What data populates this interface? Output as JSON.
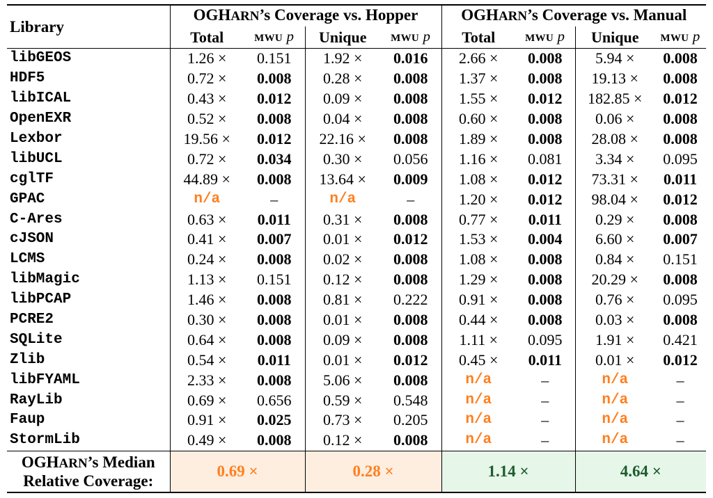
{
  "header": {
    "library": "Library",
    "group_hopper_pre": "OGH",
    "group_hopper_sc": "ARN",
    "group_hopper_post": "’s Coverage vs. Hopper",
    "group_manual_pre": "OGH",
    "group_manual_sc": "ARN",
    "group_manual_post": "’s Coverage vs. Manual",
    "total": "Total",
    "unique": "Unique",
    "mwu": "MWU",
    "p": "p"
  },
  "rows": [
    {
      "lib": "libGEOS",
      "c": [
        [
          "1.26 ×",
          false
        ],
        [
          "0.151",
          false
        ],
        [
          "1.92 ×",
          false
        ],
        [
          "0.016",
          true
        ],
        [
          "2.66 ×",
          false
        ],
        [
          "0.008",
          true
        ],
        [
          "5.94 ×",
          false
        ],
        [
          "0.008",
          true
        ]
      ]
    },
    {
      "lib": "HDF5",
      "c": [
        [
          "0.72 ×",
          false
        ],
        [
          "0.008",
          true
        ],
        [
          "0.28 ×",
          false
        ],
        [
          "0.008",
          true
        ],
        [
          "1.37 ×",
          false
        ],
        [
          "0.008",
          true
        ],
        [
          "19.13 ×",
          false
        ],
        [
          "0.008",
          true
        ]
      ]
    },
    {
      "lib": "libICAL",
      "c": [
        [
          "0.43 ×",
          false
        ],
        [
          "0.012",
          true
        ],
        [
          "0.09 ×",
          false
        ],
        [
          "0.008",
          true
        ],
        [
          "1.55 ×",
          false
        ],
        [
          "0.012",
          true
        ],
        [
          "182.85 ×",
          false
        ],
        [
          "0.012",
          true
        ]
      ]
    },
    {
      "lib": "OpenEXR",
      "c": [
        [
          "0.52 ×",
          false
        ],
        [
          "0.008",
          true
        ],
        [
          "0.04 ×",
          false
        ],
        [
          "0.008",
          true
        ],
        [
          "0.60 ×",
          false
        ],
        [
          "0.008",
          true
        ],
        [
          "0.06 ×",
          false
        ],
        [
          "0.008",
          true
        ]
      ]
    },
    {
      "lib": "Lexbor",
      "c": [
        [
          "19.56 ×",
          false
        ],
        [
          "0.012",
          true
        ],
        [
          "22.16 ×",
          false
        ],
        [
          "0.008",
          true
        ],
        [
          "1.89 ×",
          false
        ],
        [
          "0.008",
          true
        ],
        [
          "28.08 ×",
          false
        ],
        [
          "0.008",
          true
        ]
      ]
    },
    {
      "lib": "libUCL",
      "c": [
        [
          "0.72 ×",
          false
        ],
        [
          "0.034",
          true
        ],
        [
          "0.30 ×",
          false
        ],
        [
          "0.056",
          false
        ],
        [
          "1.16 ×",
          false
        ],
        [
          "0.081",
          false
        ],
        [
          "3.34 ×",
          false
        ],
        [
          "0.095",
          false
        ]
      ]
    },
    {
      "lib": "cglTF",
      "c": [
        [
          "44.89 ×",
          false
        ],
        [
          "0.008",
          true
        ],
        [
          "13.64 ×",
          false
        ],
        [
          "0.009",
          true
        ],
        [
          "1.08 ×",
          false
        ],
        [
          "0.012",
          true
        ],
        [
          "73.31 ×",
          false
        ],
        [
          "0.011",
          true
        ]
      ]
    },
    {
      "lib": "GPAC",
      "c": [
        [
          "n/a",
          "na"
        ],
        [
          "–",
          false
        ],
        [
          "n/a",
          "na"
        ],
        [
          "–",
          false
        ],
        [
          "1.20 ×",
          false
        ],
        [
          "0.012",
          true
        ],
        [
          "98.04 ×",
          false
        ],
        [
          "0.012",
          true
        ]
      ]
    },
    {
      "lib": "C-Ares",
      "c": [
        [
          "0.63 ×",
          false
        ],
        [
          "0.011",
          true
        ],
        [
          "0.31 ×",
          false
        ],
        [
          "0.008",
          true
        ],
        [
          "0.77 ×",
          false
        ],
        [
          "0.011",
          true
        ],
        [
          "0.29 ×",
          false
        ],
        [
          "0.008",
          true
        ]
      ]
    },
    {
      "lib": "cJSON",
      "c": [
        [
          "0.41 ×",
          false
        ],
        [
          "0.007",
          true
        ],
        [
          "0.01 ×",
          false
        ],
        [
          "0.012",
          true
        ],
        [
          "1.53 ×",
          false
        ],
        [
          "0.004",
          true
        ],
        [
          "6.60 ×",
          false
        ],
        [
          "0.007",
          true
        ]
      ]
    },
    {
      "lib": "LCMS",
      "c": [
        [
          "0.24 ×",
          false
        ],
        [
          "0.008",
          true
        ],
        [
          "0.02 ×",
          false
        ],
        [
          "0.008",
          true
        ],
        [
          "1.08 ×",
          false
        ],
        [
          "0.008",
          true
        ],
        [
          "0.84 ×",
          false
        ],
        [
          "0.151",
          false
        ]
      ]
    },
    {
      "lib": "libMagic",
      "c": [
        [
          "1.13 ×",
          false
        ],
        [
          "0.151",
          false
        ],
        [
          "0.12 ×",
          false
        ],
        [
          "0.008",
          true
        ],
        [
          "1.29 ×",
          false
        ],
        [
          "0.008",
          true
        ],
        [
          "20.29 ×",
          false
        ],
        [
          "0.008",
          true
        ]
      ]
    },
    {
      "lib": "libPCAP",
      "c": [
        [
          "1.46 ×",
          false
        ],
        [
          "0.008",
          true
        ],
        [
          "0.81 ×",
          false
        ],
        [
          "0.222",
          false
        ],
        [
          "0.91 ×",
          false
        ],
        [
          "0.008",
          true
        ],
        [
          "0.76 ×",
          false
        ],
        [
          "0.095",
          false
        ]
      ]
    },
    {
      "lib": "PCRE2",
      "c": [
        [
          "0.30 ×",
          false
        ],
        [
          "0.008",
          true
        ],
        [
          "0.01 ×",
          false
        ],
        [
          "0.008",
          true
        ],
        [
          "0.44 ×",
          false
        ],
        [
          "0.008",
          true
        ],
        [
          "0.03 ×",
          false
        ],
        [
          "0.008",
          true
        ]
      ]
    },
    {
      "lib": "SQLite",
      "c": [
        [
          "0.64 ×",
          false
        ],
        [
          "0.008",
          true
        ],
        [
          "0.09 ×",
          false
        ],
        [
          "0.008",
          true
        ],
        [
          "1.11 ×",
          false
        ],
        [
          "0.095",
          false
        ],
        [
          "1.91 ×",
          false
        ],
        [
          "0.421",
          false
        ]
      ]
    },
    {
      "lib": "Zlib",
      "c": [
        [
          "0.54 ×",
          false
        ],
        [
          "0.011",
          true
        ],
        [
          "0.01 ×",
          false
        ],
        [
          "0.012",
          true
        ],
        [
          "0.45 ×",
          false
        ],
        [
          "0.011",
          true
        ],
        [
          "0.01 ×",
          false
        ],
        [
          "0.012",
          true
        ]
      ]
    },
    {
      "lib": "libFYAML",
      "c": [
        [
          "2.33 ×",
          false
        ],
        [
          "0.008",
          true
        ],
        [
          "5.06 ×",
          false
        ],
        [
          "0.008",
          true
        ],
        [
          "n/a",
          "na"
        ],
        [
          "–",
          false
        ],
        [
          "n/a",
          "na"
        ],
        [
          "–",
          false
        ]
      ]
    },
    {
      "lib": "RayLib",
      "c": [
        [
          "0.69 ×",
          false
        ],
        [
          "0.656",
          false
        ],
        [
          "0.59 ×",
          false
        ],
        [
          "0.548",
          false
        ],
        [
          "n/a",
          "na"
        ],
        [
          "–",
          false
        ],
        [
          "n/a",
          "na"
        ],
        [
          "–",
          false
        ]
      ]
    },
    {
      "lib": "Faup",
      "c": [
        [
          "0.91 ×",
          false
        ],
        [
          "0.025",
          true
        ],
        [
          "0.73 ×",
          false
        ],
        [
          "0.205",
          false
        ],
        [
          "n/a",
          "na"
        ],
        [
          "–",
          false
        ],
        [
          "n/a",
          "na"
        ],
        [
          "–",
          false
        ]
      ]
    },
    {
      "lib": "StormLib",
      "c": [
        [
          "0.49 ×",
          false
        ],
        [
          "0.008",
          true
        ],
        [
          "0.12 ×",
          false
        ],
        [
          "0.008",
          true
        ],
        [
          "n/a",
          "na"
        ],
        [
          "–",
          false
        ],
        [
          "n/a",
          "na"
        ],
        [
          "–",
          false
        ]
      ]
    }
  ],
  "summary": {
    "label_line1_pre": "OGH",
    "label_line1_sc": "ARN",
    "label_line1_post": "’s Median",
    "label_line2": "Relative Coverage:",
    "hopper_total": "0.69 ×",
    "hopper_unique": "0.28 ×",
    "manual_total": "1.14 ×",
    "manual_unique": "4.64 ×"
  },
  "colors": {
    "na_orange": "#ff7f1e",
    "summary_orange_bg": "#fdeee0",
    "summary_green_bg": "#e6f6e9",
    "summary_green_text": "#1e5c2e"
  }
}
